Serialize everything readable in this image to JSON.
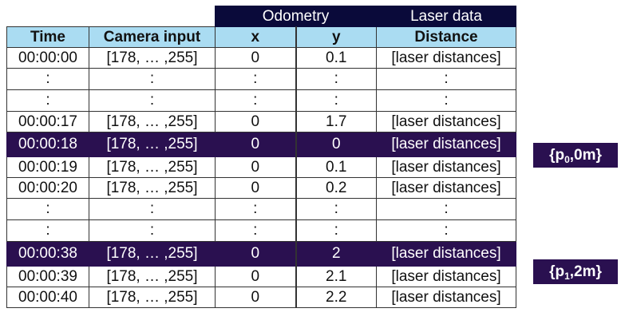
{
  "header": {
    "groups": {
      "odometry": "Odometry",
      "laser": "Laser data"
    },
    "columns": [
      "Time",
      "Camera input",
      "x",
      "y",
      "Distance"
    ]
  },
  "rows": [
    [
      "00:00:00",
      "[178, … ,255]",
      "0",
      "0.1",
      "[laser distances]"
    ],
    [
      ":",
      ":",
      ":",
      ":",
      ":"
    ],
    [
      ":",
      ":",
      ":",
      ":",
      ":"
    ],
    [
      "00:00:17",
      "[178, … ,255]",
      "0",
      "1.7",
      "[laser distances]"
    ],
    [
      "00:00:18",
      "[178, … ,255]",
      "0",
      "0",
      "[laser distances]"
    ],
    [
      "00:00:19",
      "[178, … ,255]",
      "0",
      "0.1",
      "[laser distances]"
    ],
    [
      "00:00:20",
      "[178, … ,255]",
      "0",
      "0.2",
      "[laser distances]"
    ],
    [
      ":",
      ":",
      ":",
      ":",
      ":"
    ],
    [
      ":",
      ":",
      ":",
      ":",
      ":"
    ],
    [
      "00:00:38",
      "[178, … ,255]",
      "0",
      "2",
      "[laser distances]"
    ],
    [
      "00:00:39",
      "[178, … ,255]",
      "0",
      "2.1",
      "[laser distances]"
    ],
    [
      "00:00:40",
      "[178, … ,255]",
      "0",
      "2.2",
      "[laser distances]"
    ]
  ],
  "poses": [
    {
      "open": "{p",
      "sub": "0",
      "close": ",0m}"
    },
    {
      "open": "{p",
      "sub": "1",
      "close": ",2m}"
    }
  ],
  "colors": {
    "group_header": "#0a0a3a",
    "column_header": "#aadcf2",
    "highlight": "#2a1050"
  }
}
